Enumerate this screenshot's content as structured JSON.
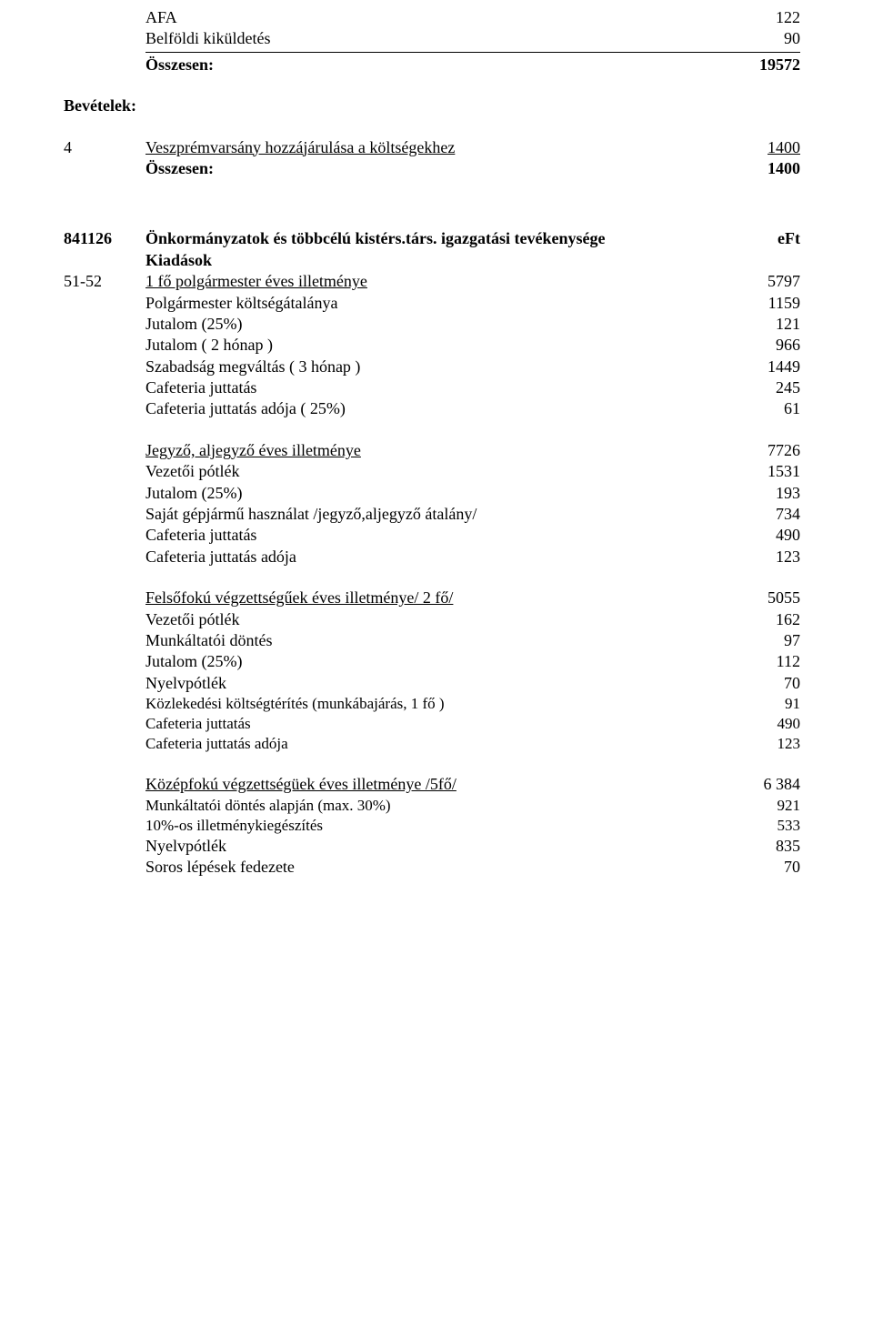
{
  "top": {
    "afa_label": "AFA",
    "afa_value": "122",
    "belfoldi_label": "Belföldi kiküldetés",
    "belfoldi_value": "90",
    "osszesen_label": "Összesen:",
    "osszesen_value": "19572"
  },
  "bevetelek": {
    "heading": "Bevételek:",
    "code": "4",
    "label": "Veszprémvarsány hozzájárulása a költségekhez",
    "value": "1400",
    "osszesen_label": "Összesen:",
    "osszesen_value": "1400"
  },
  "section": {
    "code": "841126",
    "title": "Önkormányzatok és többcélú kistérs.társ. igazgatási tevékenysége",
    "eft": "eFt",
    "kiadasok": "Kiadások",
    "sub_code": "51-52",
    "items1": [
      {
        "label": "1 fő polgármester éves illetménye",
        "value": "5797",
        "underline": true
      },
      {
        "label": "Polgármester költségátalánya",
        "value": "1159"
      },
      {
        "label": "Jutalom (25%)",
        "value": "121"
      },
      {
        "label": "Jutalom ( 2 hónap )",
        "value": "966"
      },
      {
        "label": "Szabadság megváltás ( 3 hónap )",
        "value": "1449"
      },
      {
        "label": "Cafeteria juttatás",
        "value": "245"
      },
      {
        "label": "Cafeteria juttatás adója ( 25%)",
        "value": "61"
      }
    ],
    "items2": [
      {
        "label": "Jegyző, aljegyző éves illetménye",
        "value": "7726",
        "underline": true
      },
      {
        "label": "Vezetői pótlék",
        "value": "1531"
      },
      {
        "label": "Jutalom (25%)",
        "value": "193"
      },
      {
        "label": "Saját gépjármű használat /jegyző,aljegyző átalány/",
        "value": "734"
      },
      {
        "label": "Cafeteria juttatás",
        "value": "490"
      },
      {
        "label": "Cafeteria juttatás adója",
        "value": "123"
      }
    ],
    "items3": [
      {
        "label": "Felsőfokú végzettségűek éves illetménye/ 2 fő/",
        "value": "5055",
        "underline": true
      },
      {
        "label": "Vezetői pótlék",
        "value": "162"
      },
      {
        "label": "Munkáltatói döntés",
        "value": "97"
      },
      {
        "label": "Jutalom (25%)",
        "value": "112"
      },
      {
        "label": "Nyelvpótlék",
        "value": "70"
      },
      {
        "label": "Közlekedési költségtérítés (munkábajárás, 1 fő )",
        "value": "91",
        "smaller": true
      },
      {
        "label": "Cafeteria juttatás",
        "value": "490",
        "smaller": true
      },
      {
        "label": "Cafeteria juttatás adója",
        "value": "123",
        "smaller": true
      }
    ],
    "items4": [
      {
        "label": "Középfokú végzettségüek éves illetménye /5fő/",
        "value": "6 384",
        "underline": true
      },
      {
        "label": "Munkáltatói döntés alapján (max. 30%)",
        "value": "921",
        "smaller": true
      },
      {
        "label": "10%-os illetménykiegészítés",
        "value": "533",
        "smaller": true
      },
      {
        "label": "Nyelvpótlék",
        "value": "835"
      },
      {
        "label": "Soros lépések fedezete",
        "value": "70"
      }
    ]
  }
}
